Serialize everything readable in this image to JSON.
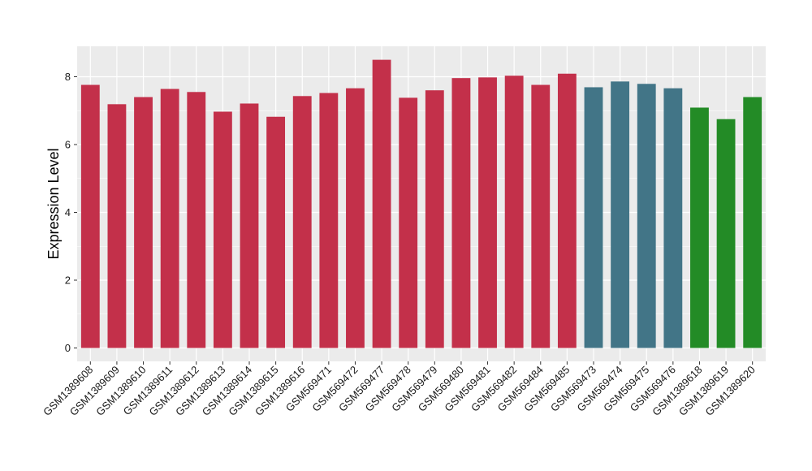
{
  "chart_data": {
    "type": "bar",
    "title": "",
    "xlabel": "",
    "ylabel": "Expression Level",
    "ylim": [
      0,
      8.9
    ],
    "yticks": [
      0,
      2,
      4,
      6,
      8
    ],
    "grid": true,
    "legend": "none",
    "categories": [
      "GSM1389608",
      "GSM1389609",
      "GSM1389610",
      "GSM1389611",
      "GSM1389612",
      "GSM1389613",
      "GSM1389614",
      "GSM1389615",
      "GSM1389616",
      "GSM569471",
      "GSM569472",
      "GSM569477",
      "GSM569478",
      "GSM569479",
      "GSM569480",
      "GSM569481",
      "GSM569482",
      "GSM569484",
      "GSM569485",
      "GSM569473",
      "GSM569474",
      "GSM569475",
      "GSM569476",
      "GSM1389618",
      "GSM1389619",
      "GSM1389620"
    ],
    "values": [
      7.76,
      7.19,
      7.4,
      7.64,
      7.55,
      6.97,
      7.21,
      6.82,
      7.43,
      7.52,
      7.66,
      8.5,
      7.38,
      7.6,
      7.96,
      7.98,
      8.03,
      7.76,
      8.09,
      7.69,
      7.86,
      7.79,
      7.66,
      7.09,
      6.75,
      7.4
    ],
    "groups": [
      0,
      0,
      0,
      0,
      0,
      0,
      0,
      0,
      0,
      0,
      0,
      0,
      0,
      0,
      0,
      0,
      0,
      0,
      0,
      1,
      1,
      1,
      1,
      2,
      2,
      2
    ],
    "colors": [
      "#c3304a",
      "#427587",
      "#238b26"
    ]
  },
  "style": {
    "panel_background": "#ebebeb",
    "grid_color": "#ffffff",
    "axis_tick_color": "#333333"
  }
}
